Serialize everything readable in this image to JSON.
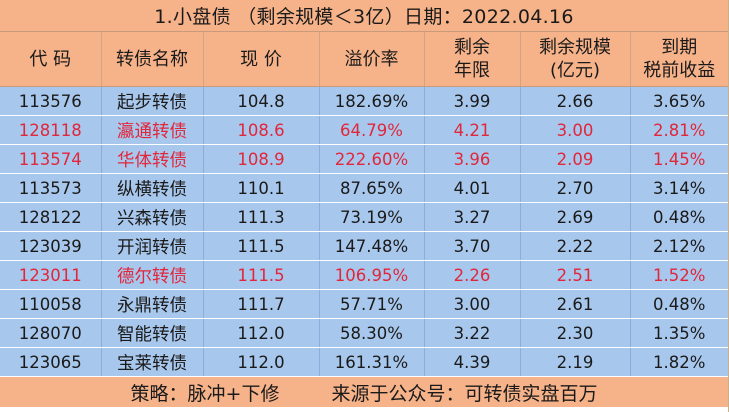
{
  "title": "1.小盘债 （剩余规模＜3亿）日期：2022.04.16",
  "headers": [
    [
      "代 码"
    ],
    [
      "转债名称"
    ],
    [
      "现 价"
    ],
    [
      "溢价率"
    ],
    [
      "剩余",
      "年限"
    ],
    [
      "剩余规模",
      "(亿元)"
    ],
    [
      "到期",
      "税前收益"
    ]
  ],
  "rows": [
    {
      "code": "113576",
      "name": "起步转债",
      "price": "104.8",
      "premium": "182.69%",
      "years": "3.99",
      "size": "2.66",
      "ytm": "3.65%",
      "red": false
    },
    {
      "code": "128118",
      "name": "瀛通转债",
      "price": "108.6",
      "premium": "64.79%",
      "years": "4.21",
      "size": "3.00",
      "ytm": "2.81%",
      "red": true
    },
    {
      "code": "113574",
      "name": "华体转债",
      "price": "108.9",
      "premium": "222.60%",
      "years": "3.96",
      "size": "2.09",
      "ytm": "1.45%",
      "red": true
    },
    {
      "code": "113573",
      "name": "纵横转债",
      "price": "110.1",
      "premium": "87.65%",
      "years": "4.01",
      "size": "2.70",
      "ytm": "3.14%",
      "red": false
    },
    {
      "code": "128122",
      "name": "兴森转债",
      "price": "111.3",
      "premium": "73.19%",
      "years": "3.27",
      "size": "2.69",
      "ytm": "0.48%",
      "red": false
    },
    {
      "code": "123039",
      "name": "开润转债",
      "price": "111.5",
      "premium": "147.48%",
      "years": "3.70",
      "size": "2.22",
      "ytm": "2.12%",
      "red": false
    },
    {
      "code": "123011",
      "name": "德尔转债",
      "price": "111.5",
      "premium": "106.95%",
      "years": "2.26",
      "size": "2.51",
      "ytm": "1.52%",
      "red": true
    },
    {
      "code": "110058",
      "name": "永鼎转债",
      "price": "111.7",
      "premium": "57.71%",
      "years": "3.00",
      "size": "2.61",
      "ytm": "0.48%",
      "red": false
    },
    {
      "code": "128070",
      "name": "智能转债",
      "price": "112.0",
      "premium": "58.30%",
      "years": "3.22",
      "size": "2.30",
      "ytm": "1.35%",
      "red": false
    },
    {
      "code": "123065",
      "name": "宝莱转债",
      "price": "112.0",
      "premium": "161.31%",
      "years": "4.39",
      "size": "2.19",
      "ytm": "1.82%",
      "red": false
    }
  ],
  "footer": {
    "strategy": "策略：脉冲+下修",
    "source": "来源于公众号：可转债实盘百万"
  },
  "colors": {
    "header_bg": "#f6b289",
    "row_bg": "#a8c7ec",
    "highlight_text": "#e0273b"
  }
}
